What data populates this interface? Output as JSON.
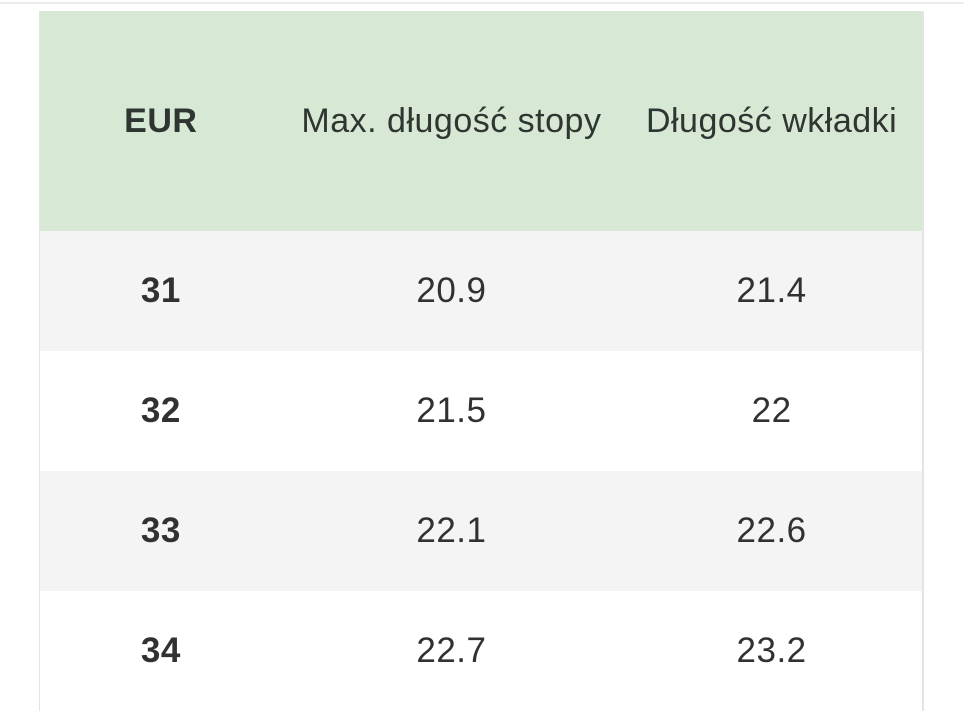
{
  "colors": {
    "header_bg": "#d7e8d4",
    "row_bg": "#ffffff",
    "row_alt_bg": "#f4f4f4",
    "text_color": "#313131",
    "header_text_color": "#2f3530",
    "border_color": "#e4e4e4",
    "divider_color": "#ececec"
  },
  "table": {
    "header": {
      "columns": [
        {
          "label": "EUR"
        },
        {
          "label": "Max. długość stopy"
        },
        {
          "label": "Długość wkładki"
        }
      ]
    },
    "rows": [
      {
        "eur": "31",
        "max_foot_length": "20.9",
        "insole_length": "21.4"
      },
      {
        "eur": "32",
        "max_foot_length": "21.5",
        "insole_length": "22"
      },
      {
        "eur": "33",
        "max_foot_length": "22.1",
        "insole_length": "22.6"
      },
      {
        "eur": "34",
        "max_foot_length": "22.7",
        "insole_length": "23.2"
      }
    ]
  }
}
